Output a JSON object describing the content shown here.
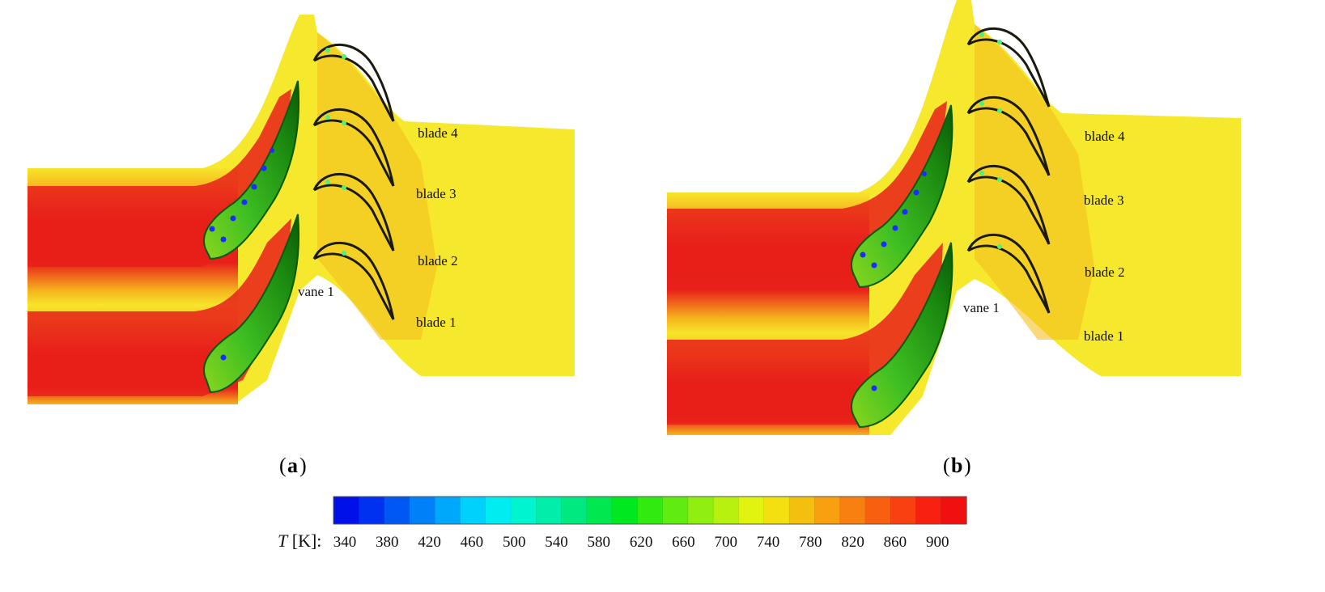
{
  "panels": [
    {
      "id": "a",
      "caption": "a",
      "labels": {
        "blade4": "blade 4",
        "blade3": "blade 3",
        "blade2": "blade 2",
        "blade1": "blade 1",
        "vane1": "vane 1"
      }
    },
    {
      "id": "b",
      "caption": "b",
      "labels": {
        "blade4": "blade 4",
        "blade3": "blade 3",
        "blade2": "blade 2",
        "blade1": "blade 1",
        "vane1": "vane 1"
      }
    }
  ],
  "colorbar": {
    "title_symbol": "T",
    "title_unit": " [K]:",
    "ticks": [
      "340",
      "380",
      "420",
      "460",
      "500",
      "540",
      "580",
      "620",
      "660",
      "700",
      "740",
      "780",
      "820",
      "860",
      "900"
    ],
    "colors": [
      "#0010e8",
      "#0030f0",
      "#0058f4",
      "#0080f8",
      "#00a8fc",
      "#00d0fc",
      "#00ecf0",
      "#00f4d0",
      "#00eeaa",
      "#00e880",
      "#00e850",
      "#00e820",
      "#30ea10",
      "#60ec10",
      "#90ee10",
      "#b8f010",
      "#e0f410",
      "#f4e010",
      "#f4c010",
      "#f8a010",
      "#f88010",
      "#f86010",
      "#f84010",
      "#f82010",
      "#f01010"
    ]
  },
  "field_colors": {
    "hot": "#e8201a",
    "warm": "#f06a1c",
    "mid": "#f5b51e",
    "cool": "#f7e52a",
    "mainstream": "#f6e82c",
    "vane_green": "#4cc820",
    "vane_dark": "#0a5a08",
    "hole_blue": "#1a2cff",
    "hole_green": "#50f07a"
  }
}
